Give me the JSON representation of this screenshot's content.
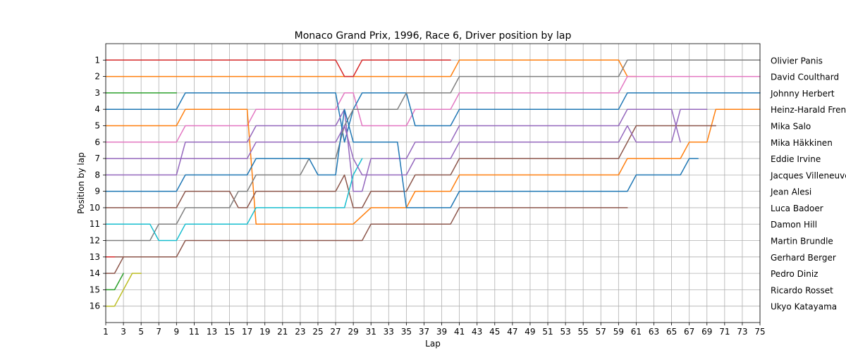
{
  "chart_data": {
    "type": "line",
    "title": "Monaco Grand Prix, 1996, Race 6, Driver position by lap",
    "xlabel": "Lap",
    "ylabel": "Position by lap",
    "xlim": [
      1,
      75
    ],
    "ylim": [
      17,
      0
    ],
    "y_inverted": true,
    "grid": true,
    "xticks": [
      1,
      3,
      5,
      7,
      9,
      11,
      13,
      15,
      17,
      19,
      21,
      23,
      25,
      27,
      29,
      31,
      33,
      35,
      37,
      39,
      41,
      43,
      45,
      47,
      49,
      51,
      53,
      55,
      57,
      59,
      61,
      63,
      65,
      67,
      69,
      71,
      73,
      75
    ],
    "yticks": [
      1,
      2,
      3,
      4,
      5,
      6,
      7,
      8,
      9,
      10,
      11,
      12,
      13,
      14,
      15,
      16
    ],
    "legend_placement": "right, labels at each driver's final position",
    "series": [
      {
        "name": "Olivier Panis",
        "color": "#ff7f0e",
        "points": [
          [
            1,
            2
          ],
          [
            40,
            2
          ],
          [
            41,
            1
          ],
          [
            59,
            1
          ],
          [
            60,
            2
          ],
          [
            61,
            2
          ]
        ]
      },
      {
        "name": "David Coulthard",
        "color": "#e377c2",
        "points": [
          [
            1,
            6
          ],
          [
            9,
            6
          ],
          [
            10,
            5
          ],
          [
            17,
            5
          ],
          [
            18,
            4
          ],
          [
            27,
            4
          ],
          [
            28,
            3
          ],
          [
            29,
            3
          ],
          [
            30,
            5
          ],
          [
            35,
            5
          ],
          [
            36,
            4
          ],
          [
            40,
            4
          ],
          [
            41,
            3
          ],
          [
            59,
            3
          ],
          [
            60,
            2
          ],
          [
            75,
            2
          ]
        ]
      },
      {
        "name": "Johnny Herbert",
        "color": "#1f77b4",
        "points": [
          [
            1,
            4
          ],
          [
            9,
            4
          ],
          [
            10,
            3
          ],
          [
            27,
            3
          ],
          [
            28,
            6
          ],
          [
            29,
            4
          ],
          [
            30,
            3
          ],
          [
            35,
            3
          ],
          [
            36,
            5
          ],
          [
            40,
            5
          ],
          [
            41,
            4
          ],
          [
            59,
            4
          ],
          [
            60,
            3
          ],
          [
            75,
            3
          ]
        ]
      },
      {
        "name": "Heinz-Harald Frentzen",
        "color": "#ff7f0e",
        "points": [
          [
            1,
            5
          ],
          [
            9,
            5
          ],
          [
            10,
            4
          ],
          [
            17,
            4
          ],
          [
            18,
            11
          ],
          [
            29,
            11
          ],
          [
            31,
            10
          ],
          [
            35,
            10
          ],
          [
            36,
            9
          ],
          [
            40,
            9
          ],
          [
            41,
            8
          ],
          [
            59,
            8
          ],
          [
            60,
            7
          ],
          [
            61,
            7
          ],
          [
            66,
            7
          ],
          [
            67,
            6
          ],
          [
            69,
            6
          ],
          [
            70,
            4
          ],
          [
            75,
            4
          ]
        ]
      },
      {
        "name": "Mika Salo",
        "color": "#8c564b",
        "points": [
          [
            1,
            10
          ],
          [
            9,
            10
          ],
          [
            10,
            9
          ],
          [
            15,
            9
          ],
          [
            16,
            10
          ],
          [
            17,
            10
          ],
          [
            18,
            9
          ],
          [
            27,
            9
          ],
          [
            28,
            8
          ],
          [
            29,
            10
          ],
          [
            30,
            10
          ],
          [
            31,
            9
          ],
          [
            35,
            9
          ],
          [
            36,
            8
          ],
          [
            40,
            8
          ],
          [
            41,
            7
          ],
          [
            59,
            7
          ],
          [
            60,
            6
          ],
          [
            61,
            5
          ],
          [
            70,
            5
          ]
        ]
      },
      {
        "name": "Mika Häkkinen",
        "color": "#9467bd",
        "points": [
          [
            1,
            8
          ],
          [
            9,
            8
          ],
          [
            10,
            6
          ],
          [
            17,
            6
          ],
          [
            18,
            5
          ],
          [
            27,
            5
          ],
          [
            28,
            4
          ],
          [
            29,
            9
          ],
          [
            30,
            9
          ],
          [
            31,
            7
          ],
          [
            35,
            7
          ],
          [
            36,
            6
          ],
          [
            40,
            6
          ],
          [
            41,
            5
          ],
          [
            59,
            5
          ],
          [
            60,
            4
          ],
          [
            65,
            4
          ],
          [
            66,
            6
          ]
        ]
      },
      {
        "name": "Eddie Irvine",
        "color": "#8c564b",
        "points": [
          [
            1,
            13
          ],
          [
            2,
            13
          ],
          [
            3,
            13
          ],
          [
            9,
            13
          ],
          [
            10,
            12
          ],
          [
            30,
            12
          ],
          [
            31,
            11
          ],
          [
            40,
            11
          ],
          [
            41,
            10
          ],
          [
            60,
            10
          ]
        ]
      },
      {
        "name": "Jacques Villeneuve",
        "color": "#7f7f7f",
        "points": [
          [
            1,
            12
          ],
          [
            6,
            12
          ],
          [
            7,
            11
          ],
          [
            9,
            11
          ],
          [
            10,
            10
          ],
          [
            15,
            10
          ],
          [
            16,
            9
          ],
          [
            17,
            9
          ],
          [
            18,
            8
          ],
          [
            23,
            8
          ],
          [
            24,
            7
          ],
          [
            27,
            7
          ],
          [
            28,
            5
          ],
          [
            29,
            4
          ],
          [
            30,
            4
          ],
          [
            34,
            4
          ],
          [
            35,
            3
          ],
          [
            40,
            3
          ],
          [
            41,
            2
          ],
          [
            59,
            2
          ],
          [
            60,
            1
          ],
          [
            75,
            1
          ]
        ]
      },
      {
        "name": "Jean Alesi",
        "color": "#1f77b4",
        "points": [
          [
            1,
            9
          ],
          [
            9,
            9
          ],
          [
            10,
            8
          ],
          [
            17,
            8
          ],
          [
            18,
            7
          ],
          [
            24,
            7
          ],
          [
            25,
            8
          ],
          [
            27,
            8
          ],
          [
            28,
            4
          ],
          [
            29,
            6
          ],
          [
            34,
            6
          ],
          [
            35,
            10
          ],
          [
            40,
            10
          ],
          [
            41,
            9
          ],
          [
            60,
            9
          ],
          [
            61,
            8
          ],
          [
            66,
            8
          ],
          [
            67,
            7
          ],
          [
            68,
            7
          ]
        ]
      },
      {
        "name": "Luca Badoer",
        "color": "#d62728",
        "points": [
          [
            1,
            1
          ],
          [
            27,
            1
          ],
          [
            28,
            2
          ],
          [
            29,
            2
          ],
          [
            30,
            1
          ],
          [
            40,
            1
          ]
        ]
      },
      {
        "name": "Damon Hill",
        "color": "#17becf",
        "points": [
          [
            1,
            11
          ],
          [
            6,
            11
          ],
          [
            7,
            12
          ],
          [
            9,
            12
          ],
          [
            10,
            11
          ],
          [
            17,
            11
          ],
          [
            18,
            10
          ],
          [
            28,
            10
          ],
          [
            29,
            8
          ],
          [
            30,
            7
          ]
        ]
      },
      {
        "name": "Martin Brundle",
        "color": "#2ca02c",
        "points": [
          [
            1,
            3
          ],
          [
            9,
            3
          ]
        ]
      },
      {
        "name": "Gerhard Berger",
        "color": "#d62728",
        "points": [
          [
            1,
            13
          ],
          [
            2,
            13
          ]
        ]
      },
      {
        "name": "Pedro Diniz",
        "color": "#9467bd",
        "points": [
          [
            1,
            7
          ],
          [
            9,
            7
          ],
          [
            10,
            7
          ],
          [
            17,
            7
          ],
          [
            18,
            6
          ],
          [
            27,
            6
          ],
          [
            28,
            5
          ],
          [
            29,
            7
          ],
          [
            30,
            8
          ],
          [
            31,
            8
          ],
          [
            35,
            8
          ],
          [
            36,
            7
          ],
          [
            40,
            7
          ],
          [
            41,
            6
          ],
          [
            59,
            6
          ],
          [
            60,
            5
          ],
          [
            61,
            6
          ],
          [
            65,
            6
          ],
          [
            66,
            4
          ],
          [
            69,
            4
          ]
        ]
      },
      {
        "name": "Ricardo Rosset",
        "color": "#2ca02c",
        "points": [
          [
            1,
            15
          ],
          [
            2,
            15
          ],
          [
            3,
            14
          ]
        ]
      },
      {
        "name": "Ukyo Katayama",
        "color": "#bcbd22",
        "points": [
          [
            1,
            16
          ],
          [
            2,
            16
          ],
          [
            4,
            14
          ],
          [
            5,
            14
          ]
        ]
      },
      {
        "name": "",
        "color": "#8c564b",
        "points": [
          [
            1,
            14
          ],
          [
            2,
            14
          ],
          [
            3,
            13
          ]
        ]
      }
    ]
  }
}
